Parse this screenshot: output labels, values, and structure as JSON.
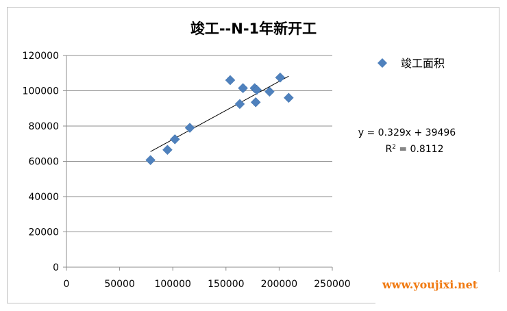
{
  "chart_data": {
    "type": "scatter",
    "title": "竣工--N-1年新开工",
    "xlabel": "",
    "ylabel": "",
    "xlim": [
      0,
      250000
    ],
    "ylim": [
      0,
      120000
    ],
    "x_ticks": [
      0,
      50000,
      100000,
      150000,
      200000,
      250000
    ],
    "y_ticks": [
      0,
      20000,
      40000,
      60000,
      80000,
      100000,
      120000
    ],
    "x_tick_labels": [
      "0",
      "50000",
      "100000",
      "150000",
      "200000",
      "250000"
    ],
    "y_tick_labels": [
      "0",
      "20000",
      "40000",
      "60000",
      "80000",
      "100000",
      "120000"
    ],
    "grid": "horizontal",
    "legend_position": "right",
    "series": [
      {
        "name": "竣工面积",
        "color": "#4f81bd",
        "marker": "diamond",
        "points": [
          {
            "x": 79000,
            "y": 60700
          },
          {
            "x": 95000,
            "y": 66500
          },
          {
            "x": 102000,
            "y": 72500
          },
          {
            "x": 116000,
            "y": 79000
          },
          {
            "x": 154000,
            "y": 106000
          },
          {
            "x": 163000,
            "y": 92500
          },
          {
            "x": 166000,
            "y": 101500
          },
          {
            "x": 177000,
            "y": 101500
          },
          {
            "x": 178000,
            "y": 93500
          },
          {
            "x": 179000,
            "y": 100500
          },
          {
            "x": 191000,
            "y": 99500
          },
          {
            "x": 201000,
            "y": 107500
          },
          {
            "x": 209000,
            "y": 96000
          }
        ]
      }
    ],
    "trendline": {
      "type": "linear",
      "slope": 0.329,
      "intercept": 39496,
      "x_range": [
        79000,
        209000
      ],
      "color": "#000000",
      "equation_label": "y = 0.329x + 39496",
      "r2_prefix": "R",
      "r2_sup": "2",
      "r2_suffix": " = 0.8112"
    }
  },
  "watermark": "www.youjixi.net"
}
